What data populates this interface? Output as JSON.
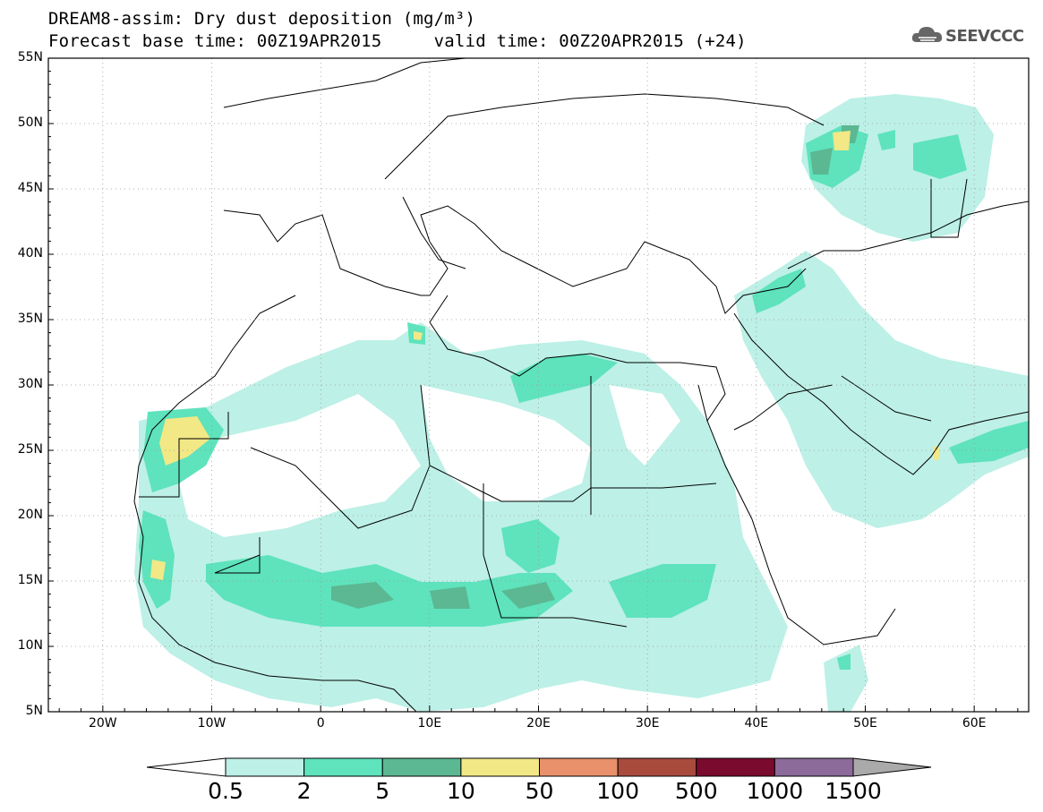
{
  "header": {
    "title_line1": "DREAM8-assim: Dry dust deposition (mg/m³)",
    "title_line2": "Forecast base time: 00Z19APR2015     valid time: 00Z20APR2015 (+24)"
  },
  "logo": {
    "text": "SEEVCCC",
    "icon": "cloud-icon"
  },
  "map": {
    "lat_labels": [
      "55N",
      "50N",
      "45N",
      "40N",
      "35N",
      "30N",
      "25N",
      "20N",
      "15N",
      "10N",
      "5N"
    ],
    "lon_labels": [
      "20W",
      "10W",
      "0",
      "10E",
      "20E",
      "30E",
      "40E",
      "50E",
      "60E"
    ],
    "lat_range": [
      5,
      55
    ],
    "lon_range": [
      -25,
      65
    ],
    "grid": true
  },
  "legend": {
    "labels": [
      "0.5",
      "2",
      "5",
      "10",
      "50",
      "100",
      "500",
      "1000",
      "1500"
    ],
    "colors": [
      "#bdf0e6",
      "#5ee3bc",
      "#5bb892",
      "#f2e886",
      "#e8916a",
      "#a84b3d",
      "#7a0b2e",
      "#8c6a9a",
      "#aaaaaa"
    ],
    "under_color": "#ffffff"
  }
}
